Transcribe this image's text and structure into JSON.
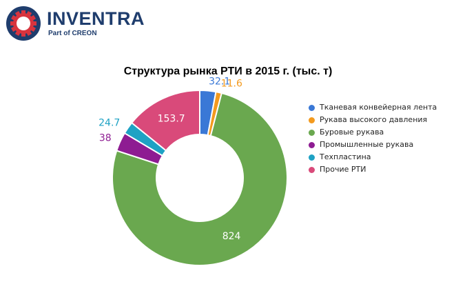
{
  "logo": {
    "brand": "INVENTRA",
    "tagline": "Part of CREON",
    "color": "#1f3d6d",
    "accent": "#d8343e"
  },
  "chart_data": {
    "type": "pie",
    "variant": "donut",
    "title": "Структура рынка РТИ в 2015 г. (тыс. т)",
    "legend_position": "right",
    "series": [
      {
        "name": "Тканевая конвейерная лента",
        "value": 32.1,
        "label": "32.1",
        "color": "#3a78d6"
      },
      {
        "name": "Рукава высокого давления",
        "value": 11.6,
        "label": "11.6",
        "color": "#f39a1e"
      },
      {
        "name": "Буровые рукава",
        "value": 824,
        "label": "824",
        "color": "#6aa84f"
      },
      {
        "name": "Промышленные рукава",
        "value": 38,
        "label": "38",
        "color": "#8e1c92"
      },
      {
        "name": "Техпластина",
        "value": 24.7,
        "label": "24.7",
        "color": "#1ea2c4"
      },
      {
        "name": "Прочие РТИ",
        "value": 153.7,
        "label": "153.7",
        "color": "#d94a7a"
      }
    ]
  }
}
